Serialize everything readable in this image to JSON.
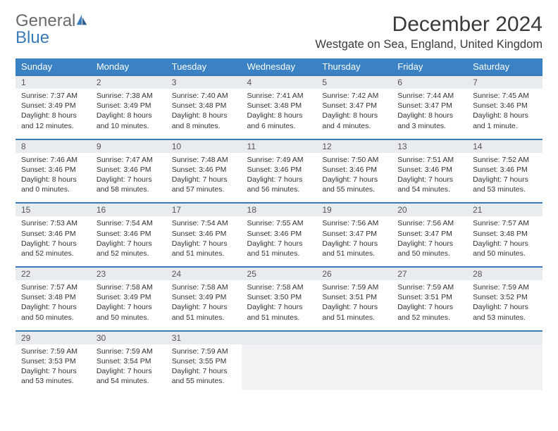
{
  "logo": {
    "text1": "General",
    "text2": "Blue"
  },
  "title": "December 2024",
  "location": "Westgate on Sea, England, United Kingdom",
  "colors": {
    "header_bg": "#3a82c4",
    "header_text": "#ffffff",
    "date_bg": "#e9ecee",
    "date_border": "#3a7ab8",
    "logo_gray": "#6a6a6a",
    "logo_blue": "#3a7ab8"
  },
  "dayNames": [
    "Sunday",
    "Monday",
    "Tuesday",
    "Wednesday",
    "Thursday",
    "Friday",
    "Saturday"
  ],
  "weeks": [
    [
      {
        "date": "1",
        "sunrise": "Sunrise: 7:37 AM",
        "sunset": "Sunset: 3:49 PM",
        "daylight": "Daylight: 8 hours and 12 minutes."
      },
      {
        "date": "2",
        "sunrise": "Sunrise: 7:38 AM",
        "sunset": "Sunset: 3:49 PM",
        "daylight": "Daylight: 8 hours and 10 minutes."
      },
      {
        "date": "3",
        "sunrise": "Sunrise: 7:40 AM",
        "sunset": "Sunset: 3:48 PM",
        "daylight": "Daylight: 8 hours and 8 minutes."
      },
      {
        "date": "4",
        "sunrise": "Sunrise: 7:41 AM",
        "sunset": "Sunset: 3:48 PM",
        "daylight": "Daylight: 8 hours and 6 minutes."
      },
      {
        "date": "5",
        "sunrise": "Sunrise: 7:42 AM",
        "sunset": "Sunset: 3:47 PM",
        "daylight": "Daylight: 8 hours and 4 minutes."
      },
      {
        "date": "6",
        "sunrise": "Sunrise: 7:44 AM",
        "sunset": "Sunset: 3:47 PM",
        "daylight": "Daylight: 8 hours and 3 minutes."
      },
      {
        "date": "7",
        "sunrise": "Sunrise: 7:45 AM",
        "sunset": "Sunset: 3:46 PM",
        "daylight": "Daylight: 8 hours and 1 minute."
      }
    ],
    [
      {
        "date": "8",
        "sunrise": "Sunrise: 7:46 AM",
        "sunset": "Sunset: 3:46 PM",
        "daylight": "Daylight: 8 hours and 0 minutes."
      },
      {
        "date": "9",
        "sunrise": "Sunrise: 7:47 AM",
        "sunset": "Sunset: 3:46 PM",
        "daylight": "Daylight: 7 hours and 58 minutes."
      },
      {
        "date": "10",
        "sunrise": "Sunrise: 7:48 AM",
        "sunset": "Sunset: 3:46 PM",
        "daylight": "Daylight: 7 hours and 57 minutes."
      },
      {
        "date": "11",
        "sunrise": "Sunrise: 7:49 AM",
        "sunset": "Sunset: 3:46 PM",
        "daylight": "Daylight: 7 hours and 56 minutes."
      },
      {
        "date": "12",
        "sunrise": "Sunrise: 7:50 AM",
        "sunset": "Sunset: 3:46 PM",
        "daylight": "Daylight: 7 hours and 55 minutes."
      },
      {
        "date": "13",
        "sunrise": "Sunrise: 7:51 AM",
        "sunset": "Sunset: 3:46 PM",
        "daylight": "Daylight: 7 hours and 54 minutes."
      },
      {
        "date": "14",
        "sunrise": "Sunrise: 7:52 AM",
        "sunset": "Sunset: 3:46 PM",
        "daylight": "Daylight: 7 hours and 53 minutes."
      }
    ],
    [
      {
        "date": "15",
        "sunrise": "Sunrise: 7:53 AM",
        "sunset": "Sunset: 3:46 PM",
        "daylight": "Daylight: 7 hours and 52 minutes."
      },
      {
        "date": "16",
        "sunrise": "Sunrise: 7:54 AM",
        "sunset": "Sunset: 3:46 PM",
        "daylight": "Daylight: 7 hours and 52 minutes."
      },
      {
        "date": "17",
        "sunrise": "Sunrise: 7:54 AM",
        "sunset": "Sunset: 3:46 PM",
        "daylight": "Daylight: 7 hours and 51 minutes."
      },
      {
        "date": "18",
        "sunrise": "Sunrise: 7:55 AM",
        "sunset": "Sunset: 3:46 PM",
        "daylight": "Daylight: 7 hours and 51 minutes."
      },
      {
        "date": "19",
        "sunrise": "Sunrise: 7:56 AM",
        "sunset": "Sunset: 3:47 PM",
        "daylight": "Daylight: 7 hours and 51 minutes."
      },
      {
        "date": "20",
        "sunrise": "Sunrise: 7:56 AM",
        "sunset": "Sunset: 3:47 PM",
        "daylight": "Daylight: 7 hours and 50 minutes."
      },
      {
        "date": "21",
        "sunrise": "Sunrise: 7:57 AM",
        "sunset": "Sunset: 3:48 PM",
        "daylight": "Daylight: 7 hours and 50 minutes."
      }
    ],
    [
      {
        "date": "22",
        "sunrise": "Sunrise: 7:57 AM",
        "sunset": "Sunset: 3:48 PM",
        "daylight": "Daylight: 7 hours and 50 minutes."
      },
      {
        "date": "23",
        "sunrise": "Sunrise: 7:58 AM",
        "sunset": "Sunset: 3:49 PM",
        "daylight": "Daylight: 7 hours and 50 minutes."
      },
      {
        "date": "24",
        "sunrise": "Sunrise: 7:58 AM",
        "sunset": "Sunset: 3:49 PM",
        "daylight": "Daylight: 7 hours and 51 minutes."
      },
      {
        "date": "25",
        "sunrise": "Sunrise: 7:58 AM",
        "sunset": "Sunset: 3:50 PM",
        "daylight": "Daylight: 7 hours and 51 minutes."
      },
      {
        "date": "26",
        "sunrise": "Sunrise: 7:59 AM",
        "sunset": "Sunset: 3:51 PM",
        "daylight": "Daylight: 7 hours and 51 minutes."
      },
      {
        "date": "27",
        "sunrise": "Sunrise: 7:59 AM",
        "sunset": "Sunset: 3:51 PM",
        "daylight": "Daylight: 7 hours and 52 minutes."
      },
      {
        "date": "28",
        "sunrise": "Sunrise: 7:59 AM",
        "sunset": "Sunset: 3:52 PM",
        "daylight": "Daylight: 7 hours and 53 minutes."
      }
    ],
    [
      {
        "date": "29",
        "sunrise": "Sunrise: 7:59 AM",
        "sunset": "Sunset: 3:53 PM",
        "daylight": "Daylight: 7 hours and 53 minutes."
      },
      {
        "date": "30",
        "sunrise": "Sunrise: 7:59 AM",
        "sunset": "Sunset: 3:54 PM",
        "daylight": "Daylight: 7 hours and 54 minutes."
      },
      {
        "date": "31",
        "sunrise": "Sunrise: 7:59 AM",
        "sunset": "Sunset: 3:55 PM",
        "daylight": "Daylight: 7 hours and 55 minutes."
      },
      null,
      null,
      null,
      null
    ]
  ]
}
